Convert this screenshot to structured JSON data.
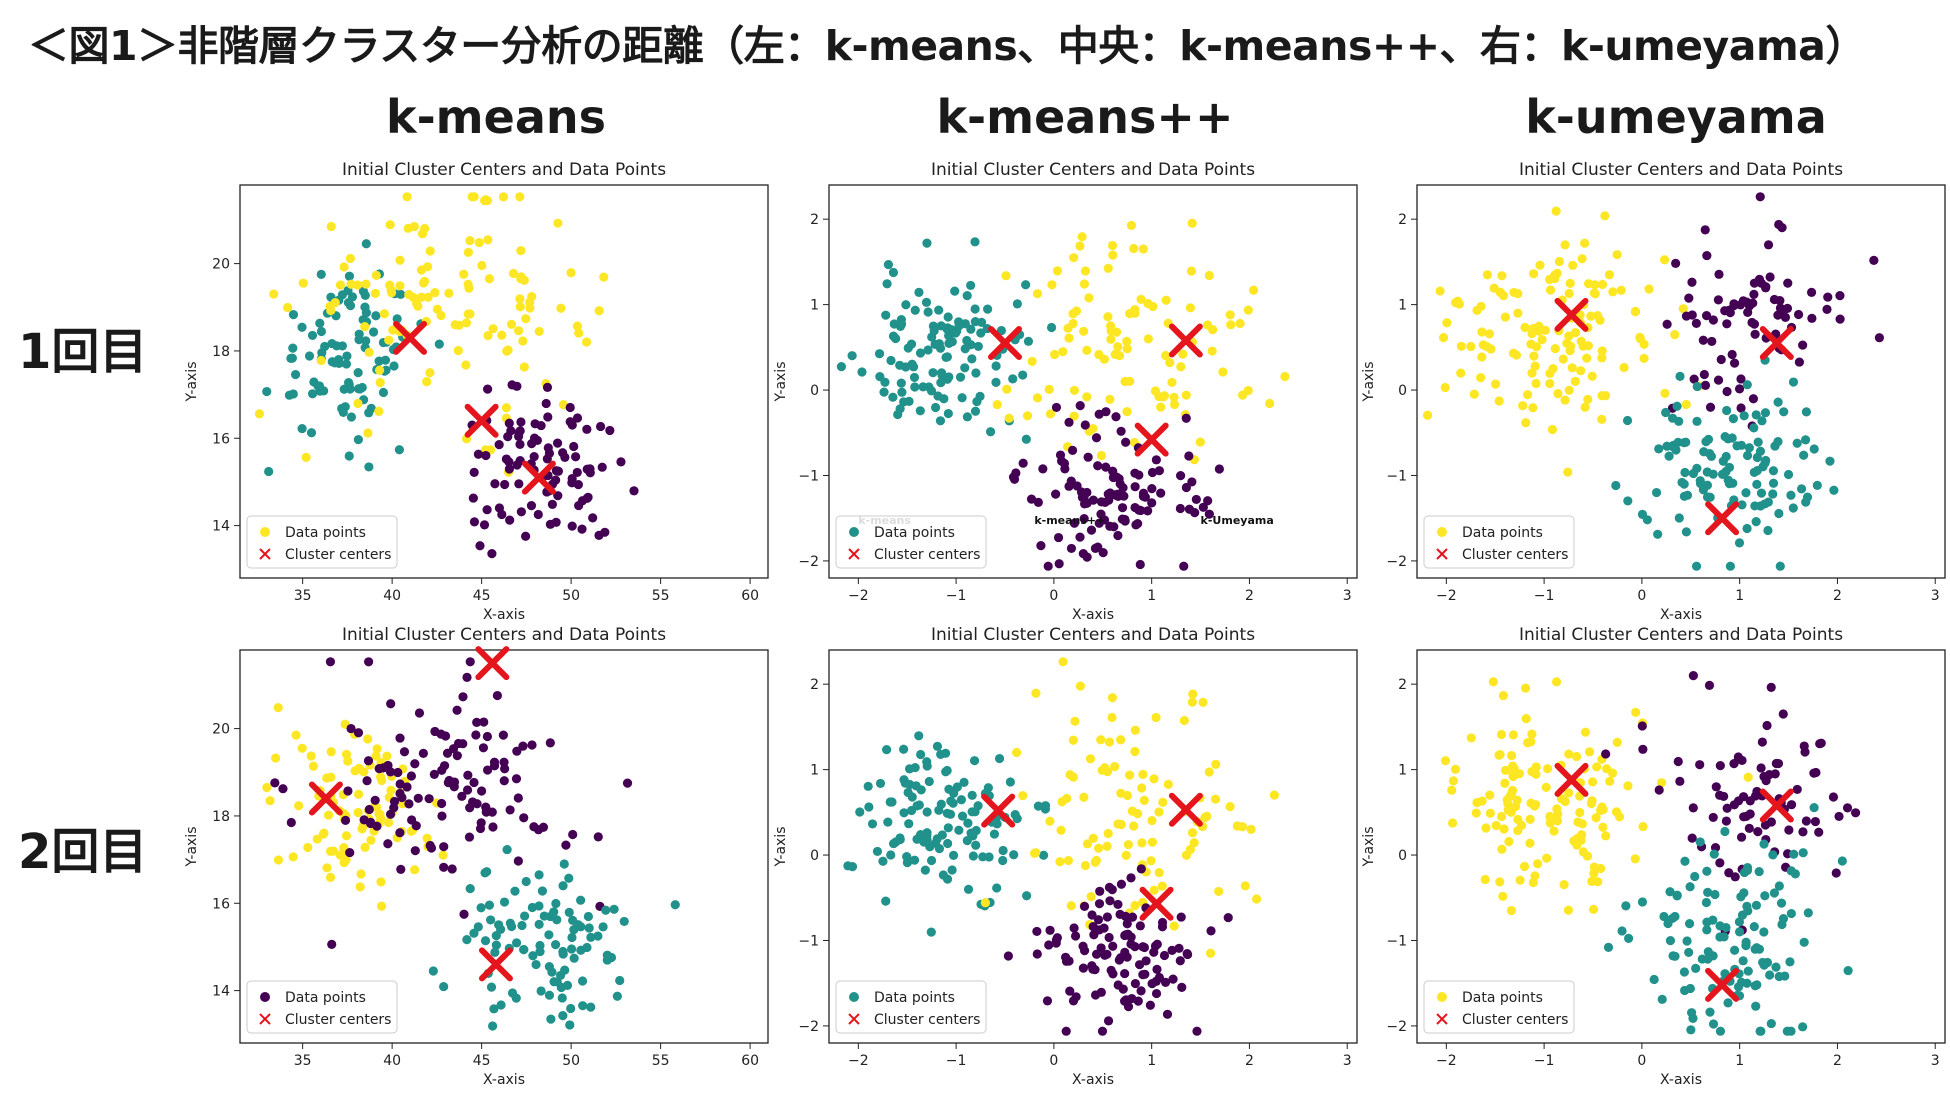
{
  "figure_title": "＜図1＞非階層クラスター分析の距離（左：k-means、中央：k-means++、右：k-umeyama）",
  "column_headers": [
    "k-means",
    "k-means++",
    "k-umeyama"
  ],
  "row_labels": [
    "1回目",
    "2回目"
  ],
  "colors": {
    "purple": "#440154",
    "teal": "#21918c",
    "yellow": "#fde725",
    "center": "#e4151c"
  },
  "chart_data": [
    {
      "type": "scatter",
      "title": "Initial Cluster Centers and Data Points",
      "xlabel": "X-axis",
      "ylabel": "Y-axis",
      "xlim": [
        31.5,
        61
      ],
      "ylim": [
        12.8,
        21.8
      ],
      "xticks": [
        35,
        40,
        45,
        50,
        55,
        60
      ],
      "yticks": [
        14,
        16,
        18,
        20
      ],
      "legend": {
        "position": "lower-left",
        "entries": [
          "Data points",
          "Cluster centers"
        ],
        "marker_color": "#fde725"
      },
      "clusters": [
        {
          "color": "#21918c",
          "center": [
            37.5,
            18.0
          ],
          "spread": [
            2.2,
            1.0
          ],
          "count": 95
        },
        {
          "color": "#fde725",
          "center": [
            43.0,
            19.0
          ],
          "spread": [
            4.0,
            1.2
          ],
          "count": 120
        },
        {
          "color": "#440154",
          "center": [
            48.5,
            15.2
          ],
          "spread": [
            2.3,
            0.9
          ],
          "count": 95
        }
      ],
      "centers": [
        [
          41,
          18.3
        ],
        [
          45,
          16.4
        ],
        [
          48.2,
          15.1
        ]
      ],
      "annotations": []
    },
    {
      "type": "scatter",
      "title": "Initial Cluster Centers and Data Points",
      "xlabel": "X-axis",
      "ylabel": "Y-axis",
      "xlim": [
        -2.3,
        3.1
      ],
      "ylim": [
        -2.2,
        2.4
      ],
      "xticks": [
        -2,
        -1,
        0,
        1,
        2,
        3
      ],
      "yticks": [
        -2,
        -1,
        0,
        1,
        2
      ],
      "legend": {
        "position": "lower-left",
        "entries": [
          "Data points",
          "Cluster centers"
        ],
        "marker_color": "#21918c"
      },
      "clusters": [
        {
          "color": "#21918c",
          "center": [
            -1.1,
            0.4
          ],
          "spread": [
            0.45,
            0.5
          ],
          "count": 120
        },
        {
          "color": "#fde725",
          "center": [
            0.9,
            0.5
          ],
          "spread": [
            0.6,
            0.7
          ],
          "count": 100
        },
        {
          "color": "#440154",
          "center": [
            0.6,
            -1.2
          ],
          "spread": [
            0.45,
            0.45
          ],
          "count": 110
        }
      ],
      "centers": [
        [
          -0.5,
          0.55
        ],
        [
          1.35,
          0.58
        ],
        [
          1.0,
          -0.58
        ]
      ],
      "annotations": [
        {
          "text": "k-means",
          "x": -2.0,
          "y": -1.57
        },
        {
          "text": "k-means++",
          "x": -0.2,
          "y": -1.57
        },
        {
          "text": "k-Umeyama",
          "x": 1.5,
          "y": -1.57
        }
      ]
    },
    {
      "type": "scatter",
      "title": "Initial Cluster Centers and Data Points",
      "xlabel": "X-axis",
      "ylabel": "Y-axis",
      "xlim": [
        -2.3,
        3.1
      ],
      "ylim": [
        -2.2,
        2.4
      ],
      "xticks": [
        -2,
        -1,
        0,
        1,
        2,
        3
      ],
      "yticks": [
        -2,
        -1,
        0,
        1,
        2
      ],
      "legend": {
        "position": "lower-left",
        "entries": [
          "Data points",
          "Cluster centers"
        ],
        "marker_color": "#fde725"
      },
      "clusters": [
        {
          "color": "#fde725",
          "center": [
            -1.0,
            0.6
          ],
          "spread": [
            0.55,
            0.55
          ],
          "count": 130
        },
        {
          "color": "#440154",
          "center": [
            1.1,
            0.8
          ],
          "spread": [
            0.45,
            0.6
          ],
          "count": 80
        },
        {
          "color": "#21918c",
          "center": [
            0.9,
            -1.0
          ],
          "spread": [
            0.5,
            0.55
          ],
          "count": 120
        }
      ],
      "centers": [
        [
          -0.72,
          0.88
        ],
        [
          1.38,
          0.55
        ],
        [
          0.82,
          -1.5
        ]
      ],
      "annotations": []
    },
    {
      "type": "scatter",
      "title": "Initial Cluster Centers and Data Points",
      "xlabel": "X-axis",
      "ylabel": "Y-axis",
      "xlim": [
        31.5,
        61
      ],
      "ylim": [
        12.8,
        21.8
      ],
      "xticks": [
        35,
        40,
        45,
        50,
        55,
        60
      ],
      "yticks": [
        14,
        16,
        18,
        20
      ],
      "legend": {
        "position": "lower-left",
        "entries": [
          "Data points",
          "Cluster centers"
        ],
        "marker_color": "#440154"
      },
      "clusters": [
        {
          "color": "#fde725",
          "center": [
            38.0,
            18.0
          ],
          "spread": [
            2.2,
            1.0
          ],
          "count": 90
        },
        {
          "color": "#440154",
          "center": [
            43.0,
            18.8
          ],
          "spread": [
            3.5,
            1.2
          ],
          "count": 120
        },
        {
          "color": "#21918c",
          "center": [
            48.5,
            15.2
          ],
          "spread": [
            2.5,
            0.9
          ],
          "count": 100
        }
      ],
      "centers": [
        [
          36.3,
          18.4
        ],
        [
          45.8,
          14.6
        ],
        [
          45.6,
          21.5
        ]
      ],
      "annotations": []
    },
    {
      "type": "scatter",
      "title": "Initial Cluster Centers and Data Points",
      "xlabel": "X-axis",
      "ylabel": "Y-axis",
      "xlim": [
        -2.3,
        3.1
      ],
      "ylim": [
        -2.2,
        2.4
      ],
      "xticks": [
        -2,
        -1,
        0,
        1,
        2,
        3
      ],
      "yticks": [
        -2,
        -1,
        0,
        1,
        2
      ],
      "legend": {
        "position": "lower-left",
        "entries": [
          "Data points",
          "Cluster centers"
        ],
        "marker_color": "#21918c"
      },
      "clusters": [
        {
          "color": "#21918c",
          "center": [
            -1.1,
            0.4
          ],
          "spread": [
            0.45,
            0.5
          ],
          "count": 120
        },
        {
          "color": "#fde725",
          "center": [
            0.9,
            0.5
          ],
          "spread": [
            0.6,
            0.7
          ],
          "count": 100
        },
        {
          "color": "#440154",
          "center": [
            0.6,
            -1.2
          ],
          "spread": [
            0.45,
            0.45
          ],
          "count": 110
        }
      ],
      "centers": [
        [
          -0.57,
          0.52
        ],
        [
          1.35,
          0.53
        ],
        [
          1.05,
          -0.57
        ]
      ],
      "annotations": []
    },
    {
      "type": "scatter",
      "title": "Initial Cluster Centers and Data Points",
      "xlabel": "X-axis",
      "ylabel": "Y-axis",
      "xlim": [
        -2.3,
        3.1
      ],
      "ylim": [
        -2.2,
        2.4
      ],
      "xticks": [
        -2,
        -1,
        0,
        1,
        2,
        3
      ],
      "yticks": [
        -2,
        -1,
        0,
        1,
        2
      ],
      "legend": {
        "position": "lower-left",
        "entries": [
          "Data points",
          "Cluster centers"
        ],
        "marker_color": "#fde725"
      },
      "clusters": [
        {
          "color": "#fde725",
          "center": [
            -1.0,
            0.6
          ],
          "spread": [
            0.55,
            0.55
          ],
          "count": 130
        },
        {
          "color": "#440154",
          "center": [
            1.1,
            0.8
          ],
          "spread": [
            0.45,
            0.6
          ],
          "count": 80
        },
        {
          "color": "#21918c",
          "center": [
            0.9,
            -1.0
          ],
          "spread": [
            0.5,
            0.55
          ],
          "count": 120
        }
      ],
      "centers": [
        [
          -0.72,
          0.88
        ],
        [
          1.38,
          0.58
        ],
        [
          0.82,
          -1.52
        ]
      ],
      "annotations": []
    }
  ]
}
